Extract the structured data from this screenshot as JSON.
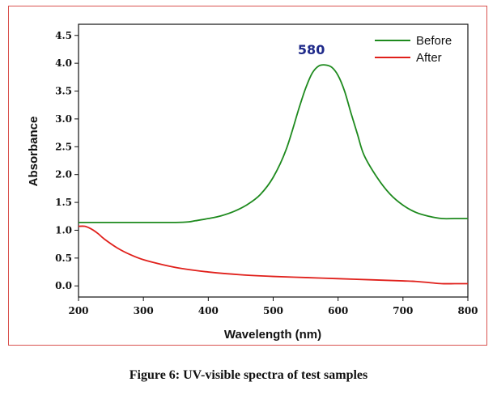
{
  "caption": "Figure 6: UV-visible spectra of test samples",
  "chart_data": {
    "type": "line",
    "title": "",
    "xlabel": "Wavelength (nm)",
    "ylabel": "Absorbance",
    "xlim": [
      200,
      800
    ],
    "ylim": [
      -0.2,
      4.7
    ],
    "xticks": [
      200,
      300,
      400,
      500,
      600,
      700,
      800
    ],
    "yticks": [
      0.0,
      0.5,
      1.0,
      1.5,
      2.0,
      2.5,
      3.0,
      3.5,
      4.0,
      4.5
    ],
    "yticks_text": [
      "0.0",
      "0.5",
      "1.0",
      "1.5",
      "2.0",
      "2.5",
      "3.0",
      "3.5",
      "4.0",
      "4.5"
    ],
    "grid": false,
    "legend_position": "top-right",
    "annotations": [
      {
        "text": "580",
        "x": 580,
        "y": 4.25
      }
    ],
    "series": [
      {
        "name": "Before",
        "color": "#1e8a1e",
        "x": [
          200,
          250,
          300,
          350,
          370,
          380,
          400,
          420,
          440,
          460,
          480,
          500,
          520,
          540,
          550,
          560,
          570,
          580,
          590,
          600,
          610,
          620,
          630,
          640,
          660,
          680,
          700,
          720,
          740,
          760,
          780,
          800
        ],
        "y": [
          1.14,
          1.14,
          1.14,
          1.14,
          1.15,
          1.17,
          1.21,
          1.26,
          1.34,
          1.46,
          1.64,
          1.95,
          2.45,
          3.2,
          3.55,
          3.82,
          3.95,
          3.97,
          3.93,
          3.78,
          3.5,
          3.1,
          2.72,
          2.35,
          1.95,
          1.65,
          1.45,
          1.32,
          1.25,
          1.21,
          1.21,
          1.21
        ]
      },
      {
        "name": "After",
        "color": "#e0201b",
        "x": [
          200,
          210,
          220,
          230,
          240,
          260,
          280,
          300,
          330,
          360,
          400,
          450,
          500,
          550,
          600,
          650,
          700,
          720,
          740,
          760,
          780,
          800
        ],
        "y": [
          1.07,
          1.07,
          1.02,
          0.94,
          0.84,
          0.68,
          0.56,
          0.47,
          0.38,
          0.31,
          0.25,
          0.2,
          0.17,
          0.15,
          0.13,
          0.11,
          0.09,
          0.08,
          0.06,
          0.04,
          0.04,
          0.04
        ]
      }
    ]
  }
}
